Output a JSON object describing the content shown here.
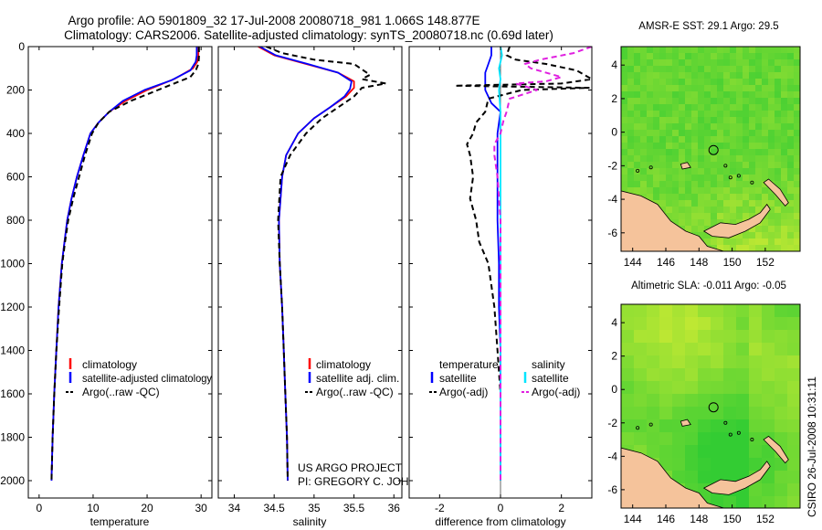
{
  "header": {
    "title_line1": "Argo profile: AO 5901809_32 17-Jul-2008 20080718_981 1.066S 148.877E",
    "title_line2": "Climatology: CARS2006. Satellite-adjusted climatology: synTS_20080718.nc (0.69d later)"
  },
  "side_label": "CSIRO 26-Jul-2008 10:31:11",
  "colors": {
    "climatology": "#ff0000",
    "satellite_adj": "#0000ff",
    "argo": "#000000",
    "sal_satellite": "#00e5ff",
    "sal_argo": "#e020e0",
    "land": "#f5c39b",
    "sea_green": "#33cc33",
    "sea_yellow": "#ddee33"
  },
  "chart_data": [
    {
      "id": "temperature",
      "type": "line",
      "xlabel": "temperature",
      "ylabel": "",
      "xlim": [
        -2,
        32
      ],
      "ylim": [
        2080,
        0
      ],
      "xticks": [
        "0",
        "10",
        "20",
        "30"
      ],
      "xtick_values": [
        0,
        10,
        20,
        30
      ],
      "yticks": [
        "0",
        "200",
        "400",
        "600",
        "800",
        "1000",
        "1200",
        "1400",
        "1600",
        "1800",
        "2000"
      ],
      "ytick_values": [
        0,
        200,
        400,
        600,
        800,
        1000,
        1200,
        1400,
        1600,
        1800,
        2000
      ],
      "legend": {
        "position": "lower-right",
        "entries": [
          "climatology",
          "satellite-adjusted climatology",
          "Argo(..raw -QC)"
        ]
      },
      "series": [
        {
          "name": "climatology",
          "color": "#ff0000",
          "dash": "",
          "points": [
            [
              29.5,
              0
            ],
            [
              29.5,
              40
            ],
            [
              29.3,
              70
            ],
            [
              28.5,
              100
            ],
            [
              25,
              150
            ],
            [
              20,
              200
            ],
            [
              16,
              250
            ],
            [
              13,
              300
            ],
            [
              11,
              350
            ],
            [
              9.5,
              400
            ],
            [
              8.2,
              500
            ],
            [
              7,
              600
            ],
            [
              6,
              700
            ],
            [
              5.2,
              800
            ],
            [
              4.7,
              900
            ],
            [
              4.2,
              1000
            ],
            [
              3.6,
              1200
            ],
            [
              3.2,
              1400
            ],
            [
              2.8,
              1600
            ],
            [
              2.5,
              1800
            ],
            [
              2.3,
              2000
            ]
          ]
        },
        {
          "name": "satellite-adjusted climatology",
          "color": "#0000ff",
          "dash": "",
          "points": [
            [
              29.2,
              0
            ],
            [
              29.2,
              40
            ],
            [
              29,
              70
            ],
            [
              28,
              110
            ],
            [
              24.5,
              155
            ],
            [
              19.5,
              200
            ],
            [
              15.5,
              250
            ],
            [
              13,
              300
            ],
            [
              11,
              350
            ],
            [
              9.5,
              400
            ],
            [
              8.2,
              500
            ],
            [
              7,
              600
            ],
            [
              6,
              700
            ],
            [
              5.2,
              800
            ],
            [
              4.7,
              900
            ],
            [
              4.2,
              1000
            ],
            [
              3.6,
              1200
            ],
            [
              3.2,
              1400
            ],
            [
              2.8,
              1600
            ],
            [
              2.5,
              1800
            ],
            [
              2.3,
              2000
            ]
          ]
        },
        {
          "name": "Argo(..raw -QC)",
          "color": "#000000",
          "dash": "6,4",
          "points": [
            [
              29.6,
              0
            ],
            [
              29.6,
              50
            ],
            [
              29.5,
              80
            ],
            [
              29,
              110
            ],
            [
              28,
              140
            ],
            [
              25,
              170
            ],
            [
              22,
              200
            ],
            [
              17,
              250
            ],
            [
              13,
              300
            ],
            [
              11,
              350
            ],
            [
              9.8,
              400
            ],
            [
              8.5,
              500
            ],
            [
              7.4,
              600
            ],
            [
              6.3,
              700
            ],
            [
              5.4,
              800
            ],
            [
              4.8,
              900
            ],
            [
              4.3,
              1000
            ],
            [
              3.7,
              1200
            ],
            [
              3.2,
              1400
            ],
            [
              2.8,
              1600
            ],
            [
              2.5,
              1800
            ],
            [
              2.3,
              2000
            ]
          ]
        }
      ]
    },
    {
      "id": "salinity",
      "type": "line",
      "xlabel": "salinity",
      "xlim": [
        33.8,
        36.1
      ],
      "ylim": [
        2080,
        0
      ],
      "xticks": [
        "34",
        "34.5",
        "35",
        "35.5",
        "36"
      ],
      "xtick_values": [
        34,
        34.5,
        35,
        35.5,
        36
      ],
      "yticks": [],
      "ytick_values": [],
      "legend": {
        "position": "lower-right",
        "entries": [
          "climatology",
          "satellite adj. clim.",
          "Argo(..raw -QC)"
        ]
      },
      "annotation": [
        "US ARGO PROJECT",
        "PI: GREGORY C. JOHNSON"
      ],
      "series": [
        {
          "name": "climatology",
          "color": "#ff0000",
          "dash": "",
          "points": [
            [
              34.3,
              0
            ],
            [
              34.5,
              40
            ],
            [
              34.9,
              80
            ],
            [
              35.3,
              120
            ],
            [
              35.5,
              160
            ],
            [
              35.5,
              190
            ],
            [
              35.4,
              230
            ],
            [
              35.2,
              280
            ],
            [
              35,
              330
            ],
            [
              34.8,
              400
            ],
            [
              34.65,
              500
            ],
            [
              34.6,
              600
            ],
            [
              34.56,
              800
            ],
            [
              34.57,
              1000
            ],
            [
              34.6,
              1200
            ],
            [
              34.62,
              1400
            ],
            [
              34.64,
              1600
            ],
            [
              34.66,
              1800
            ],
            [
              34.67,
              2000
            ]
          ]
        },
        {
          "name": "satellite adj. clim.",
          "color": "#0000ff",
          "dash": "",
          "points": [
            [
              34.32,
              0
            ],
            [
              34.52,
              40
            ],
            [
              34.92,
              80
            ],
            [
              35.3,
              120
            ],
            [
              35.47,
              160
            ],
            [
              35.45,
              195
            ],
            [
              35.38,
              230
            ],
            [
              35.2,
              280
            ],
            [
              35,
              330
            ],
            [
              34.8,
              400
            ],
            [
              34.65,
              500
            ],
            [
              34.6,
              600
            ],
            [
              34.56,
              800
            ],
            [
              34.57,
              1000
            ],
            [
              34.6,
              1200
            ],
            [
              34.62,
              1400
            ],
            [
              34.64,
              1600
            ],
            [
              34.66,
              1800
            ],
            [
              34.67,
              2000
            ]
          ]
        },
        {
          "name": "Argo(..raw -QC)",
          "color": "#000000",
          "dash": "6,4",
          "points": [
            [
              34.4,
              0
            ],
            [
              34.6,
              30
            ],
            [
              35,
              60
            ],
            [
              35.5,
              80
            ],
            [
              35.7,
              130
            ],
            [
              35.6,
              150
            ],
            [
              35.9,
              170
            ],
            [
              35.6,
              190
            ],
            [
              35.5,
              230
            ],
            [
              35.3,
              280
            ],
            [
              35.1,
              330
            ],
            [
              34.9,
              400
            ],
            [
              34.7,
              500
            ],
            [
              34.58,
              600
            ],
            [
              34.55,
              800
            ],
            [
              34.57,
              1000
            ],
            [
              34.6,
              1200
            ],
            [
              34.62,
              1400
            ],
            [
              34.64,
              1600
            ],
            [
              34.66,
              1800
            ],
            [
              34.67,
              2000
            ]
          ]
        }
      ]
    },
    {
      "id": "difference",
      "type": "line",
      "xlabel": "difference from climatology",
      "xlim": [
        -3,
        3
      ],
      "ylim": [
        2080,
        0
      ],
      "xticks": [
        "-2",
        "0",
        "2"
      ],
      "xtick_values": [
        -2,
        0,
        2
      ],
      "yticks": [],
      "ytick_values": [],
      "legend": {
        "position": "lower-right",
        "group_temperature": "temperature",
        "group_salinity": "salinity",
        "entries": [
          "satellite",
          "Argo(-adj)",
          "satellite",
          "Argo(-adj)"
        ]
      },
      "series": [
        {
          "name": "temperature satellite",
          "color": "#0000ff",
          "dash": "",
          "points": [
            [
              -0.3,
              0
            ],
            [
              -0.3,
              40
            ],
            [
              -0.4,
              80
            ],
            [
              -0.5,
              120
            ],
            [
              -0.5,
              160
            ],
            [
              -0.5,
              200
            ],
            [
              -0.3,
              260
            ],
            [
              0,
              300
            ],
            [
              -0.1,
              400
            ],
            [
              -0.1,
              600
            ],
            [
              -0.1,
              800
            ],
            [
              -0.05,
              1000
            ],
            [
              -0.05,
              1200
            ],
            [
              0,
              1400
            ],
            [
              0,
              1600
            ],
            [
              0,
              1800
            ],
            [
              0,
              2000
            ]
          ]
        },
        {
          "name": "temperature Argo(-adj)",
          "color": "#000000",
          "dash": "6,4",
          "points": [
            [
              0.3,
              0
            ],
            [
              0.2,
              40
            ],
            [
              0.5,
              60
            ],
            [
              1.5,
              80
            ],
            [
              2.5,
              110
            ],
            [
              3,
              150
            ],
            [
              2,
              170
            ],
            [
              -1.5,
              180
            ],
            [
              2.9,
              190
            ],
            [
              0.7,
              200
            ],
            [
              -0.4,
              240
            ],
            [
              -0.5,
              300
            ],
            [
              -0.8,
              350
            ],
            [
              -0.9,
              400
            ],
            [
              -1.1,
              450
            ],
            [
              -1,
              500
            ],
            [
              -0.9,
              600
            ],
            [
              -1,
              700
            ],
            [
              -0.8,
              800
            ],
            [
              -0.7,
              900
            ],
            [
              -0.4,
              1000
            ],
            [
              -0.2,
              1200
            ],
            [
              -0.1,
              1400
            ],
            [
              0,
              1600
            ],
            [
              0,
              1800
            ],
            [
              0,
              2000
            ]
          ]
        },
        {
          "name": "salinity satellite",
          "color": "#00e5ff",
          "dash": "",
          "points": [
            [
              0,
              0
            ],
            [
              0.05,
              40
            ],
            [
              -0.05,
              100
            ],
            [
              0,
              150
            ],
            [
              -0.05,
              200
            ],
            [
              0,
              300
            ],
            [
              0,
              600
            ],
            [
              0,
              1000
            ],
            [
              0,
              1400
            ],
            [
              0,
              2000
            ]
          ]
        },
        {
          "name": "salinity Argo(-adj)",
          "color": "#e020e0",
          "dash": "6,4",
          "points": [
            [
              3,
              0
            ],
            [
              2.4,
              30
            ],
            [
              1.3,
              60
            ],
            [
              0.8,
              80
            ],
            [
              1,
              100
            ],
            [
              2,
              140
            ],
            [
              1.5,
              160
            ],
            [
              0.5,
              170
            ],
            [
              1.2,
              200
            ],
            [
              0.3,
              240
            ],
            [
              0.2,
              300
            ],
            [
              0.1,
              340
            ],
            [
              0,
              400
            ],
            [
              -0.2,
              450
            ],
            [
              -0.2,
              500
            ],
            [
              -0.1,
              600
            ],
            [
              0,
              800
            ],
            [
              0,
              1000
            ],
            [
              0,
              1400
            ],
            [
              0,
              2000
            ]
          ]
        }
      ]
    },
    {
      "id": "sst_map",
      "type": "heatmap",
      "title": "AMSR-E SST: 29.1 Argo: 29.5",
      "xlim": [
        143.3,
        154.1
      ],
      "ylim": [
        -7.1,
        5.1
      ],
      "xticks": [
        "144",
        "146",
        "148",
        "150",
        "152"
      ],
      "xtick_values": [
        144,
        146,
        148,
        150,
        152
      ],
      "yticks": [
        "4",
        "2",
        "0",
        "-2",
        "-4",
        "-6"
      ],
      "ytick_values": [
        4,
        2,
        0,
        -2,
        -4,
        -6
      ],
      "argo_position": [
        148.877,
        -1.066
      ]
    },
    {
      "id": "sla_map",
      "type": "heatmap",
      "title": "Altimetric SLA: -0.011 Argo: -0.05",
      "xlim": [
        143.3,
        154.1
      ],
      "ylim": [
        -7.1,
        5.1
      ],
      "xticks": [
        "144",
        "146",
        "148",
        "150",
        "152"
      ],
      "xtick_values": [
        144,
        146,
        148,
        150,
        152
      ],
      "yticks": [
        "4",
        "2",
        "0",
        "-2",
        "-4",
        "-6"
      ],
      "ytick_values": [
        4,
        2,
        0,
        -2,
        -4,
        -6
      ],
      "argo_position": [
        148.877,
        -1.066
      ]
    }
  ]
}
